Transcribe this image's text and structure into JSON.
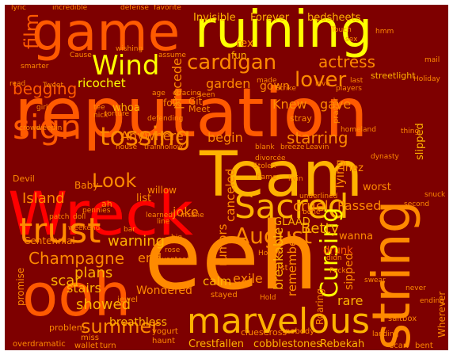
{
  "palette": {
    "background": "#7e0000",
    "frame": "#ffffff",
    "yellow": "#ffff00",
    "amber": "#ffb300",
    "orange": "#ff8a00",
    "orange_red": "#ff5a00",
    "red_orange": "#ff2a00",
    "red": "#ff0000",
    "dark_red": "#e00000",
    "deep_red": "#c00000"
  },
  "words": {
    "eeh": "eeh",
    "reputation": "reputation",
    "team": "Team",
    "wreck": "Wreck",
    "ooh": "ooh",
    "game": "game",
    "ruining": "ruining",
    "string": "string",
    "marvelous": "marvelous",
    "sacred": "Sacred",
    "trust": "trust",
    "wind": "Wind",
    "sign": "sign",
    "tossing": "tossing",
    "cardigan": "cardigan",
    "lover": "lover",
    "look": "Look",
    "august": "August",
    "cursing": "Cursing",
    "champagne": "Champagne",
    "summer": "summer",
    "film": "film",
    "begging": "begging",
    "actress": "actress",
    "starring": "starring",
    "island": "Island",
    "plans": "plans",
    "showed": "showed",
    "warning": "warning",
    "joke": "joke",
    "end": "end",
    "betty": "Betty",
    "cruel": "cruel",
    "passed": "Passed",
    "breakable": "breakable",
    "remember": "remember",
    "rumors": "rumors",
    "canceled": "canceled",
    "ricochet": "ricochet",
    "garden": "garden",
    "gown": "gown",
    "invisible": "Invisible",
    "forever": "Forever",
    "bedsheets": "bedsheets",
    "precede": "precede",
    "gave": "gave",
    "knew": "Knew",
    "begin": "begin",
    "anywhere": "Anywhere",
    "tying": "Tying",
    "exile": "exile",
    "calm": "calm",
    "scar": "scar",
    "stairs": "stairs",
    "wondered": "Wondered",
    "breathless": "breathless",
    "crestfallen": "Crestfallen",
    "cobblestones": "cobblestones",
    "rebekah": "Rebekah",
    "whoa": "whoa",
    "rex": "rex",
    "fun": "fun",
    "git": "Git",
    "folk": "folk",
    "wanna": "wanna",
    "worst": "worst",
    "rare": "rare",
    "sipped": "sipped",
    "slipped": "slipped",
    "wherever": "Wherever",
    "drunk": "drunk",
    "glaad": "GLAAD",
    "centennial": "Centennial",
    "problem": "problem",
    "promise": "promise",
    "devil": "Devil",
    "baby": "Baby",
    "list": "list",
    "willow": "willow",
    "inez": "Inez",
    "roaring": "Roaring",
    "meet": "Meet",
    "streetlight": "streetlight",
    "clues": "clues",
    "cross": "Cross",
    "nobody": "nobody",
    "stayed": "stayed",
    "first": "first",
    "jewel": "jewel",
    "miss": "miss",
    "turn": "turn",
    "overdramatic": "overdramatic",
    "wallet": "wallet",
    "haunt": "haunt",
    "yogurt": "yogurt",
    "scarf": "scarf",
    "bent": "bent",
    "saltbox": "saltbox",
    "landing": "landing",
    "ending": "ending",
    "never": "never",
    "smarter": "smarter",
    "read": "read",
    "incredible": "incredible",
    "defense": "defense",
    "favorite": "favorite",
    "wishing": "wishing",
    "assume": "assume",
    "cause": "Cause",
    "tweet": "Tweet",
    "touch": "Touch",
    "players": "players",
    "mail": "mail",
    "holiday": "Holiday",
    "strike": "Strike",
    "love": "love",
    "last": "last",
    "made": "made",
    "girl": "girl",
    "tee": "tee",
    "crowd": "crowd",
    "weepin": "weepin",
    "house": "house",
    "train": "train",
    "hollow": "hollow",
    "pennies": "pennies",
    "learned": "learned",
    "insane": "insane",
    "stolen": "Stolen",
    "divorcee": "divorcée",
    "flame": "flame",
    "livin": "livin",
    "dynasty": "dynasty",
    "snuck": "snuck",
    "second": "second",
    "bone": "bone",
    "underlined": "underlined",
    "honey": "Honey",
    "big": "big",
    "rose": "rose",
    "seventeen": "seventeen",
    "bar": "bar",
    "line": "line",
    "weekend": "weekend",
    "patch": "patch",
    "doll": "doll",
    "ah": "ah",
    "stray": "stray",
    "prayer": "prayer",
    "homeland": "homeland",
    "blank": "blank",
    "breeze": "breeze",
    "leavin": "Leavin",
    "thing": "thing",
    "pack": "Pack",
    "didn": "didn",
    "swear": "swear",
    "age": "age",
    "torture": "torture",
    "nick": "nick",
    "defending": "defending",
    "hmm": "hmm",
    "sex": "sex",
    "lyric": "lyric",
    "seen": "seen",
    "hold": "Hold",
    "effacing": "effacing"
  }
}
